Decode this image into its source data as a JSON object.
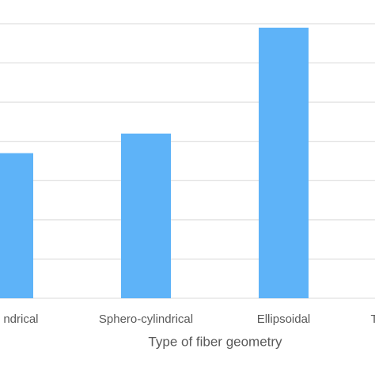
{
  "chart_data": {
    "type": "bar",
    "x_label": "Type of fiber geometry",
    "categories": [
      "ndrical",
      "Sphero-cylindrical",
      "Ellipsoidal",
      "T"
    ],
    "values": [
      3.7,
      4.2,
      6.9,
      null
    ],
    "color": "#5eb3f8",
    "ylim": [
      0,
      7
    ],
    "yticks": [
      0,
      1,
      2,
      3,
      4,
      5,
      6,
      7
    ],
    "show_ytick_labels": false,
    "grid": true
  }
}
